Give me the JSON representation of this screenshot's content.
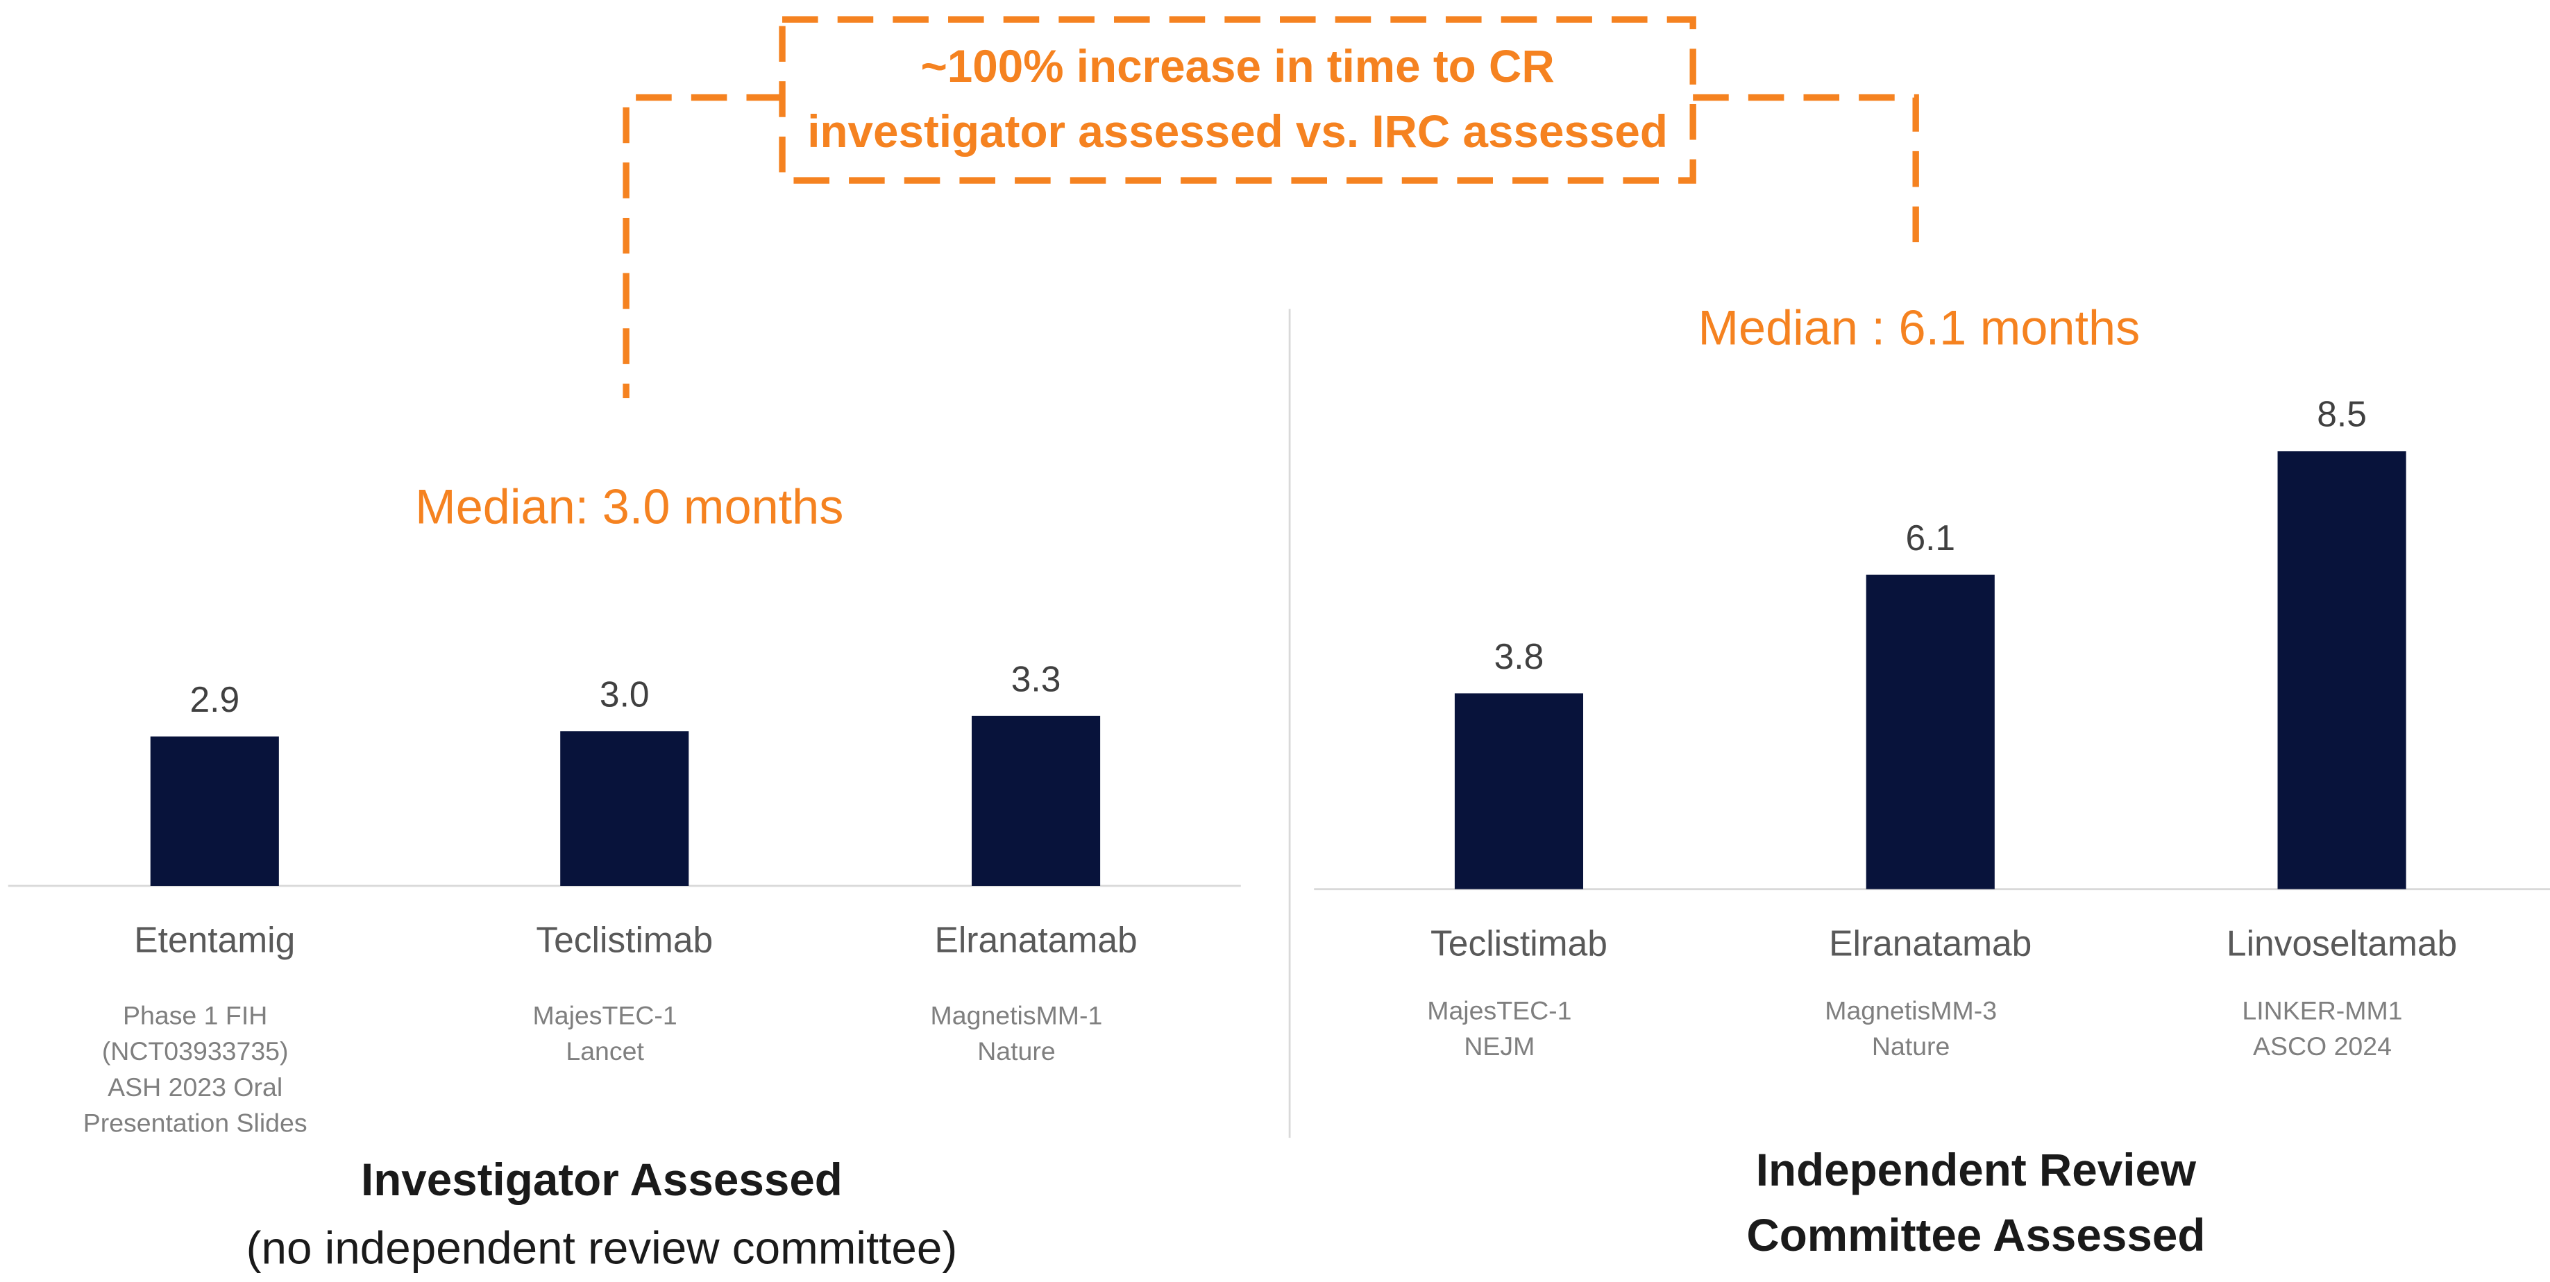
{
  "callout": [
    "~100% increase in time to CR",
    "investigator assessed vs. IRC assessed"
  ],
  "chart_data": [
    {
      "type": "bar",
      "title": [
        "Investigator Assessed"
      ],
      "subtitle": "(no independent review committee)",
      "annotation": "Median: 3.0 months",
      "categories": [
        "Etentamig",
        "Teclistimab",
        "Elranatamab"
      ],
      "sources": [
        [
          "Phase 1 FIH",
          "(NCT03933735)",
          "ASH 2023 Oral",
          "Presentation Slides"
        ],
        [
          "MajesTEC-1",
          "Lancet"
        ],
        [
          "MagnetisMM-1",
          "Nature"
        ]
      ],
      "values": [
        2.9,
        3.0,
        3.3
      ],
      "value_labels": [
        "2.9",
        "3.0",
        "3.3"
      ],
      "color": "#08133b"
    },
    {
      "type": "bar",
      "title": [
        "Independent Review",
        "Committee Assessed"
      ],
      "annotation": "Median : 6.1 months",
      "categories": [
        "Teclistimab",
        "Elranatamab",
        "Linvoseltamab"
      ],
      "sources": [
        [
          "MajesTEC-1",
          "NEJM"
        ],
        [
          "MagnetisMM-3",
          "Nature"
        ],
        [
          "LINKER-MM1",
          "ASCO 2024"
        ]
      ],
      "values": [
        3.8,
        6.1,
        8.5
      ],
      "value_labels": [
        "3.8",
        "6.1",
        "8.5"
      ],
      "color": "#08133b"
    }
  ]
}
